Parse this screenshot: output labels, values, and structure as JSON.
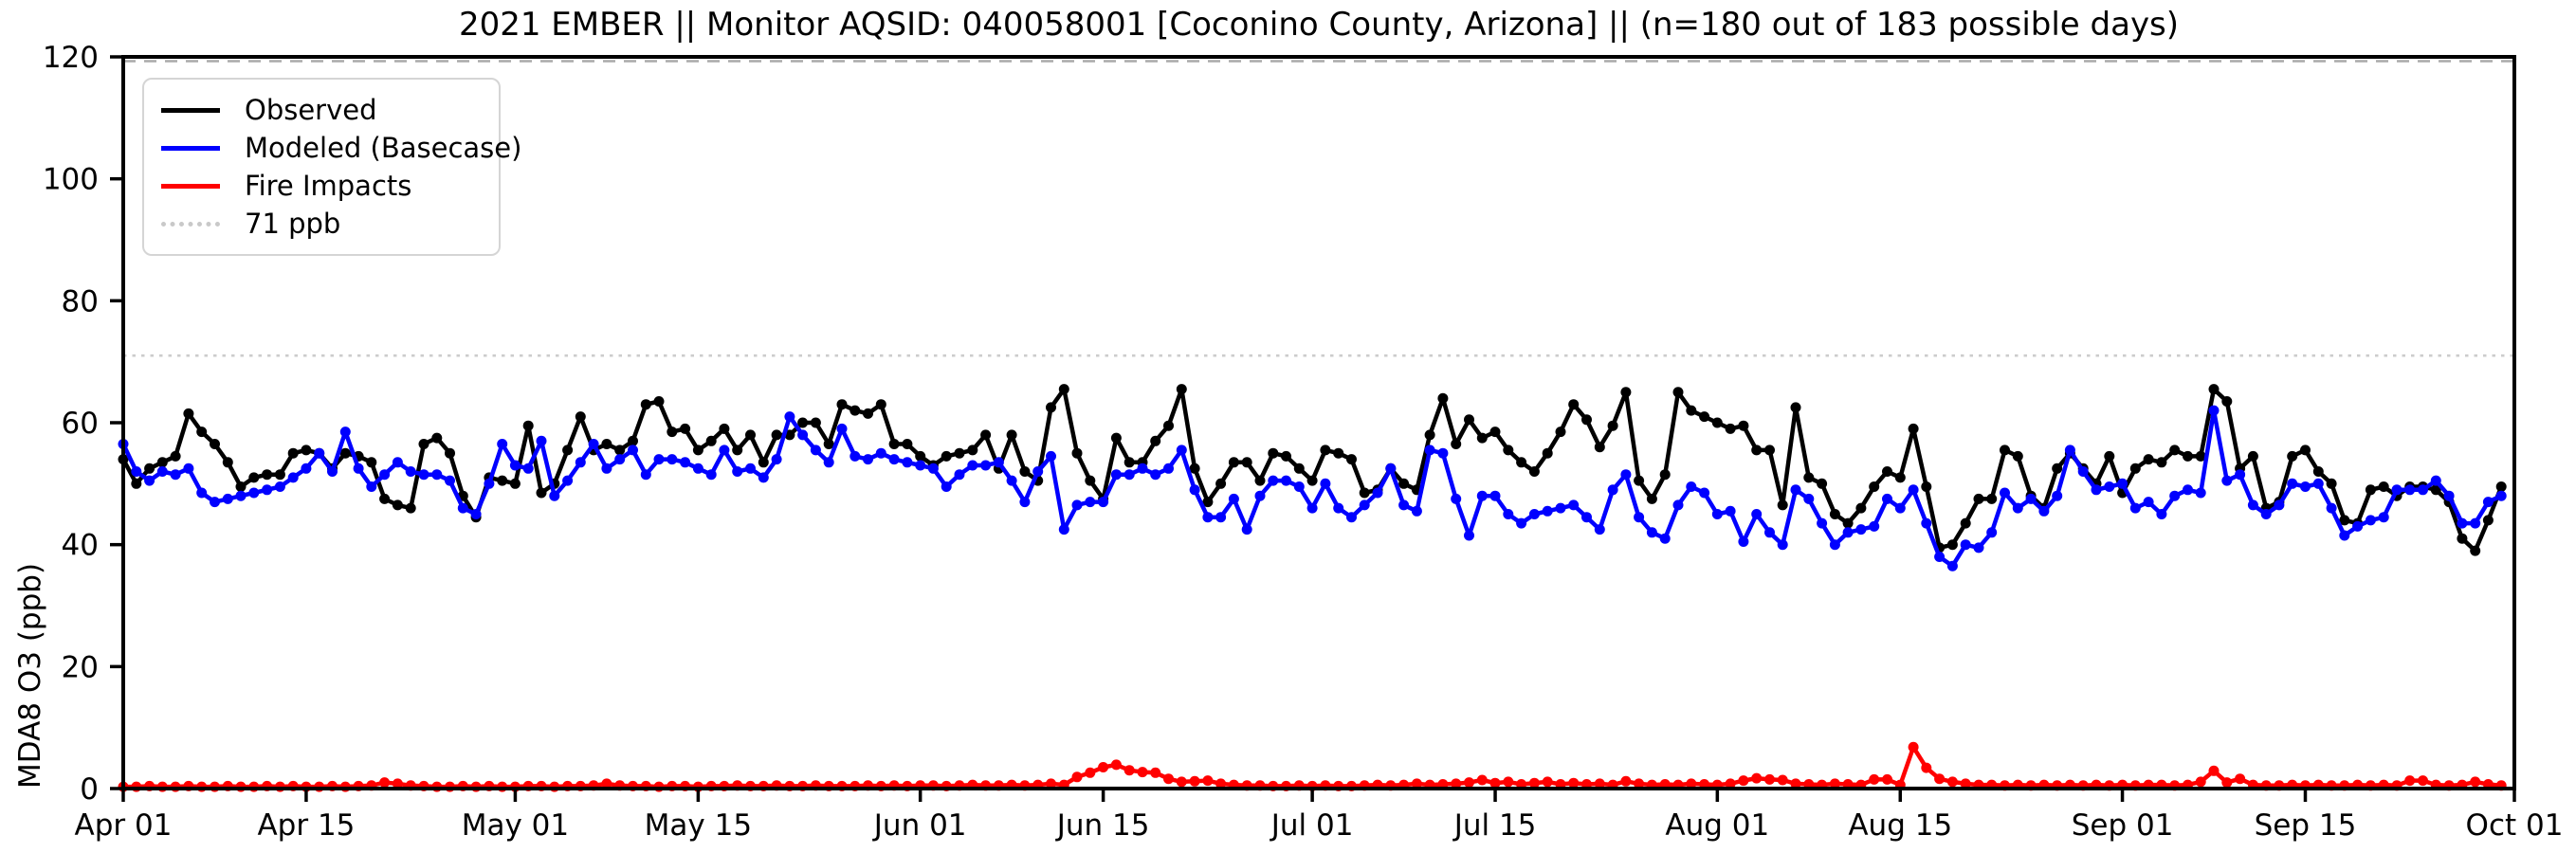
{
  "figure": {
    "title": "2021 EMBER || Monitor AQSID: 040058001 [Coconino County, Arizona] || (n=180 out of 183 possible days)"
  },
  "legend": {
    "items": [
      {
        "label": "Observed",
        "color": "#000000",
        "style": "solid"
      },
      {
        "label": "Modeled (Basecase)",
        "color": "#0000ff",
        "style": "solid"
      },
      {
        "label": "Fire Impacts",
        "color": "#ff0000",
        "style": "solid"
      },
      {
        "label": "71 ppb",
        "color": "#c9c9c9",
        "style": "dotted"
      }
    ]
  },
  "chart_data": {
    "type": "line",
    "title": "2021 EMBER || Monitor AQSID: 040058001 [Coconino County, Arizona] || (n=180 out of 183 possible days)",
    "xlabel": "",
    "ylabel": "MDA8 O3 (ppb)",
    "ylim": [
      0,
      120
    ],
    "y_ticks": [
      0,
      20,
      40,
      60,
      80,
      100,
      120
    ],
    "x_start_date": "2021-04-01",
    "x_end_date": "2021-09-30",
    "x_range_days": [
      0,
      183
    ],
    "x_tick_days": [
      0,
      14,
      30,
      44,
      61,
      75,
      91,
      105,
      122,
      136,
      153,
      167,
      183
    ],
    "x_tick_labels": [
      "Apr 01",
      "Apr 15",
      "May 01",
      "May 15",
      "Jun 01",
      "Jun 15",
      "Jul 01",
      "Jul 15",
      "Aug 01",
      "Aug 15",
      "Sep 01",
      "Sep 15",
      "Oct 01"
    ],
    "grid": false,
    "legend_position": "upper-left",
    "n_days_reported": 180,
    "n_days_possible": 183,
    "reference_lines": [
      {
        "label": "71 ppb",
        "value": 71,
        "color": "#cccccc",
        "style": "dotted"
      },
      {
        "label": "",
        "value": 119.3,
        "color": "#aaaaaa",
        "style": "dashed"
      }
    ],
    "series": [
      {
        "name": "Observed",
        "color": "#000000",
        "values": [
          54,
          50,
          52.5,
          53.5,
          54.5,
          61.5,
          58.5,
          56.5,
          53.5,
          49.5,
          51,
          51.5,
          51.5,
          55,
          55.5,
          55,
          52.5,
          55,
          54.5,
          53.5,
          47.5,
          46.5,
          46,
          56.5,
          57.5,
          55,
          48,
          44.5,
          51,
          50.5,
          50,
          59.5,
          48.5,
          50,
          55.5,
          61,
          55.5,
          56.5,
          55.5,
          57,
          63,
          63.5,
          58.5,
          59,
          55.5,
          57,
          59,
          55.5,
          58,
          53.5,
          58,
          58,
          60,
          60,
          56.5,
          63,
          62,
          61.5,
          63,
          56.5,
          56.5,
          54.5,
          53,
          54.5,
          55,
          55.5,
          58,
          52.5,
          58,
          52,
          50.5,
          62.5,
          65.5,
          55,
          50.5,
          47.5,
          57.5,
          53.5,
          53.5,
          57,
          59.5,
          65.5,
          52.5,
          47,
          50,
          53.5,
          53.5,
          50.5,
          55,
          54.5,
          52.5,
          50.5,
          55.5,
          55,
          54,
          48.5,
          49,
          52.5,
          50,
          49,
          58,
          64,
          56.5,
          60.5,
          57.5,
          58.5,
          55.5,
          53.5,
          52,
          55,
          58.5,
          63,
          60.5,
          56,
          59.5,
          65,
          50.5,
          47.5,
          51.5,
          65,
          62,
          61,
          60,
          59,
          59.5,
          55.5,
          55.5,
          46.5,
          62.5,
          51,
          50,
          45,
          43.5,
          46,
          49.5,
          52,
          51,
          59,
          49.5,
          39.5,
          40,
          43.5,
          47.5,
          47.5,
          55.5,
          54.5,
          48,
          46,
          52.5,
          55,
          52.5,
          50,
          54.5,
          48.5,
          52.5,
          54,
          53.5,
          55.5,
          54.5,
          54.5,
          65.5,
          63.5,
          52.5,
          54.5,
          46,
          47,
          54.5,
          55.5,
          52,
          50,
          44,
          43.5,
          49,
          49.5,
          48,
          49.5,
          49.5,
          49,
          47,
          41,
          39,
          44,
          49.5
        ]
      },
      {
        "name": "Modeled (Basecase)",
        "color": "#0000ff",
        "values": [
          56.5,
          52,
          50.5,
          52,
          51.5,
          52.5,
          48.5,
          47,
          47.5,
          48,
          48.5,
          49,
          49.5,
          51,
          52.5,
          55,
          52,
          58.5,
          52.5,
          49.5,
          51.5,
          53.5,
          52,
          51.5,
          51.5,
          50.5,
          46,
          45,
          50,
          56.5,
          53,
          52.5,
          57,
          48,
          50.5,
          53.5,
          56.5,
          52.5,
          54,
          55.5,
          51.5,
          54,
          54,
          53.5,
          52.5,
          51.5,
          55.5,
          52,
          52.5,
          51,
          54,
          61,
          58,
          55.5,
          53.5,
          59,
          54.5,
          54,
          55,
          54,
          53.5,
          53,
          52.5,
          49.5,
          51.5,
          53,
          53,
          53.5,
          50.5,
          47,
          52,
          54.5,
          42.5,
          46.5,
          47,
          47,
          51.5,
          51.5,
          52.5,
          51.5,
          52.5,
          55.5,
          49,
          44.5,
          44.5,
          47.5,
          42.5,
          48,
          50.5,
          50.5,
          49.5,
          46,
          50,
          46,
          44.5,
          46.5,
          48.5,
          52.5,
          46.5,
          45.5,
          55.5,
          55,
          47.5,
          41.5,
          48,
          48,
          45,
          43.5,
          45,
          45.5,
          46,
          46.5,
          44.5,
          42.5,
          49,
          51.5,
          44.5,
          42,
          41,
          46.5,
          49.5,
          48.5,
          45,
          45.5,
          40.5,
          45,
          42,
          40,
          49,
          47.5,
          43.5,
          40,
          42,
          42.5,
          43,
          47.5,
          46,
          49,
          43.5,
          38,
          36.5,
          40,
          39.5,
          42,
          48.5,
          46,
          47.5,
          45.5,
          48,
          55.5,
          52,
          49,
          49.5,
          50,
          46,
          47,
          45,
          48,
          49,
          48.5,
          62,
          50.5,
          51.5,
          46.5,
          45,
          46.5,
          50,
          49.5,
          50,
          46,
          41.5,
          43,
          44,
          44.5,
          49,
          49,
          49,
          50.5,
          48,
          43.5,
          43.5,
          47,
          48
        ]
      },
      {
        "name": "Fire Impacts",
        "color": "#ff0000",
        "values": [
          0.3,
          0.3,
          0.4,
          0.3,
          0.3,
          0.4,
          0.3,
          0.3,
          0.4,
          0.3,
          0.3,
          0.4,
          0.3,
          0.4,
          0.3,
          0.3,
          0.4,
          0.3,
          0.4,
          0.5,
          1,
          0.8,
          0.5,
          0.4,
          0.3,
          0.3,
          0.4,
          0.3,
          0.4,
          0.3,
          0.3,
          0.4,
          0.4,
          0.3,
          0.4,
          0.4,
          0.5,
          0.8,
          0.5,
          0.4,
          0.4,
          0.3,
          0.4,
          0.4,
          0.3,
          0.4,
          0.4,
          0.5,
          0.4,
          0.4,
          0.5,
          0.4,
          0.4,
          0.5,
          0.4,
          0.4,
          0.4,
          0.5,
          0.4,
          0.5,
          0.4,
          0.5,
          0.5,
          0.4,
          0.5,
          0.6,
          0.5,
          0.5,
          0.6,
          0.5,
          0.6,
          0.8,
          0.6,
          1.9,
          2.6,
          3.5,
          3.9,
          3,
          2.7,
          2.6,
          1.6,
          1.1,
          1.2,
          1.3,
          0.8,
          0.6,
          0.5,
          0.5,
          0.4,
          0.4,
          0.5,
          0.4,
          0.5,
          0.4,
          0.4,
          0.5,
          0.6,
          0.5,
          0.6,
          0.8,
          0.6,
          0.7,
          0.8,
          1,
          1.4,
          0.9,
          1.1,
          0.7,
          0.9,
          1.1,
          0.7,
          0.9,
          0.7,
          0.8,
          0.6,
          1.2,
          0.8,
          0.6,
          0.7,
          0.6,
          0.8,
          0.7,
          0.6,
          0.8,
          1.3,
          1.7,
          1.5,
          1.4,
          0.8,
          0.7,
          0.6,
          0.8,
          0.7,
          0.6,
          1.5,
          1.5,
          0.6,
          6.8,
          3.4,
          1.6,
          1.1,
          0.8,
          0.6,
          0.6,
          0.5,
          0.6,
          0.5,
          0.6,
          0.5,
          0.6,
          0.5,
          0.6,
          0.5,
          0.6,
          0.5,
          0.6,
          0.6,
          0.5,
          0.6,
          1.1,
          2.9,
          1,
          1.6,
          0.6,
          0.5,
          0.5,
          0.6,
          0.5,
          0.6,
          0.5,
          0.5,
          0.6,
          0.5,
          0.6,
          0.5,
          1.3,
          1.3,
          0.6,
          0.5,
          0.6,
          1.1,
          0.7,
          0.5
        ]
      }
    ]
  }
}
